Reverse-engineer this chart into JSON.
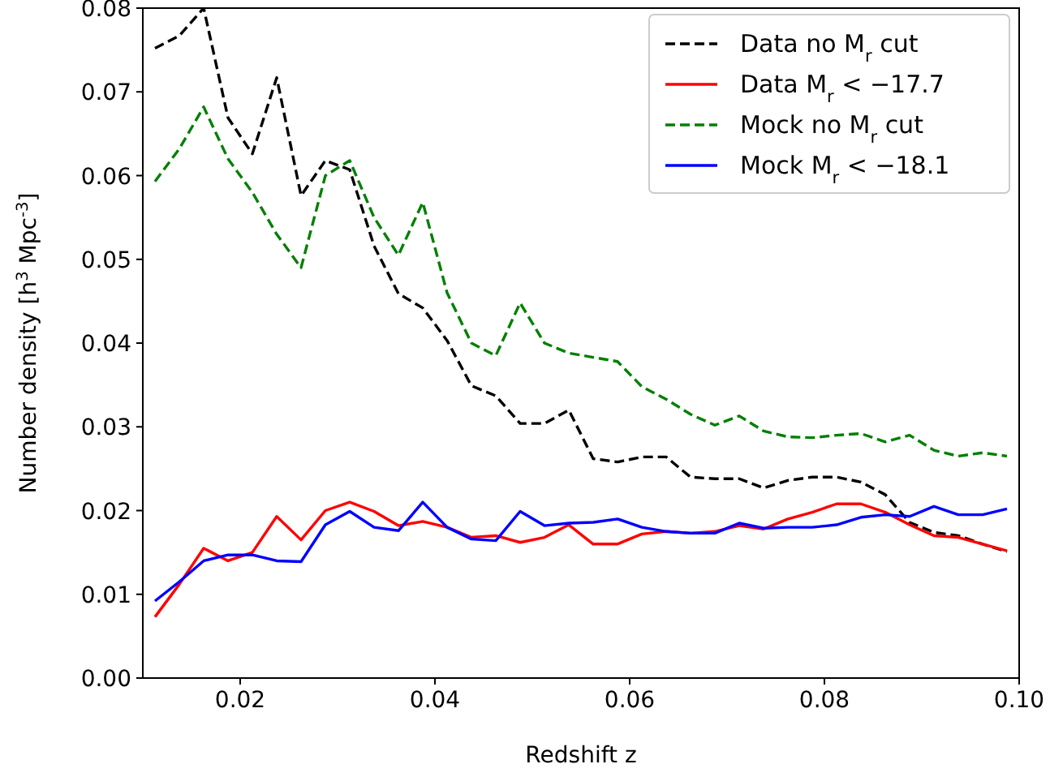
{
  "chart_data": {
    "type": "line",
    "xlabel": "Redshift z",
    "ylabel": "Number density [h$^{3}$ Mpc$^{-3}$]",
    "x": [
      0.01125,
      0.01375,
      0.01625,
      0.01875,
      0.02125,
      0.02375,
      0.02625,
      0.02875,
      0.03125,
      0.03375,
      0.03625,
      0.03875,
      0.04125,
      0.04375,
      0.04625,
      0.04875,
      0.05125,
      0.05375,
      0.05625,
      0.05875,
      0.06125,
      0.06375,
      0.06625,
      0.06875,
      0.07125,
      0.07375,
      0.07625,
      0.07875,
      0.08125,
      0.08375,
      0.08625,
      0.08875,
      0.09125,
      0.09375,
      0.09625,
      0.09875
    ],
    "series": [
      {
        "name": "Data no M$_{r}$ cut",
        "color": "#000000",
        "line_style": "dashed",
        "values": [
          0.0752,
          0.0767,
          0.08,
          0.0669,
          0.0626,
          0.0717,
          0.0576,
          0.0618,
          0.0607,
          0.0516,
          0.0459,
          0.0442,
          0.0403,
          0.0349,
          0.0337,
          0.0304,
          0.0304,
          0.032,
          0.0262,
          0.0258,
          0.0264,
          0.0264,
          0.024,
          0.0238,
          0.0238,
          0.0227,
          0.0236,
          0.024,
          0.024,
          0.0234,
          0.0219,
          0.0186,
          0.0174,
          0.017,
          0.016,
          0.0151
        ]
      },
      {
        "name": "Data M$_{r}$ < −17.7",
        "color": "#ff0000",
        "line_style": "solid",
        "values": [
          0.0073,
          0.0112,
          0.0155,
          0.014,
          0.015,
          0.0193,
          0.0165,
          0.02,
          0.021,
          0.0199,
          0.0182,
          0.0187,
          0.018,
          0.0168,
          0.017,
          0.0162,
          0.0168,
          0.0183,
          0.016,
          0.016,
          0.0172,
          0.0175,
          0.0173,
          0.0175,
          0.0182,
          0.0178,
          0.019,
          0.0198,
          0.0208,
          0.0208,
          0.0198,
          0.0183,
          0.017,
          0.0168,
          0.016,
          0.0152
        ]
      },
      {
        "name": "Mock no M$_{r}$ cut",
        "color": "#008000",
        "line_style": "dashed",
        "values": [
          0.0593,
          0.0632,
          0.0682,
          0.062,
          0.058,
          0.053,
          0.049,
          0.06,
          0.0618,
          0.055,
          0.0505,
          0.0568,
          0.046,
          0.04,
          0.0385,
          0.0448,
          0.04,
          0.0388,
          0.0383,
          0.0378,
          0.0348,
          0.0333,
          0.0315,
          0.0302,
          0.0313,
          0.0295,
          0.0288,
          0.0287,
          0.029,
          0.0292,
          0.0282,
          0.029,
          0.0272,
          0.0265,
          0.0269,
          0.0265
        ]
      },
      {
        "name": "Mock M$_{r}$ < −18.1",
        "color": "#0000ff",
        "line_style": "solid",
        "values": [
          0.0092,
          0.0115,
          0.014,
          0.0147,
          0.0147,
          0.014,
          0.0139,
          0.0183,
          0.0199,
          0.018,
          0.0176,
          0.021,
          0.018,
          0.0166,
          0.0164,
          0.0199,
          0.0182,
          0.0185,
          0.0186,
          0.019,
          0.018,
          0.0175,
          0.0173,
          0.0173,
          0.0185,
          0.0179,
          0.018,
          0.018,
          0.0183,
          0.0192,
          0.0195,
          0.0193,
          0.0205,
          0.0195,
          0.0195,
          0.0202
        ]
      }
    ],
    "xlim": [
      0.01,
      0.1
    ],
    "xticks": [
      0.02,
      0.04,
      0.06,
      0.08,
      {
        "value": 0.1,
        "label": "0.10"
      }
    ],
    "ylim": [
      0,
      0.08
    ],
    "yticks": [
      {
        "value": 0,
        "label": "0.00"
      },
      0.01,
      0.02,
      0.03,
      0.04,
      0.05,
      0.06,
      0.07,
      0.08
    ],
    "grid": false,
    "legend": "top right",
    "marker": "none"
  }
}
